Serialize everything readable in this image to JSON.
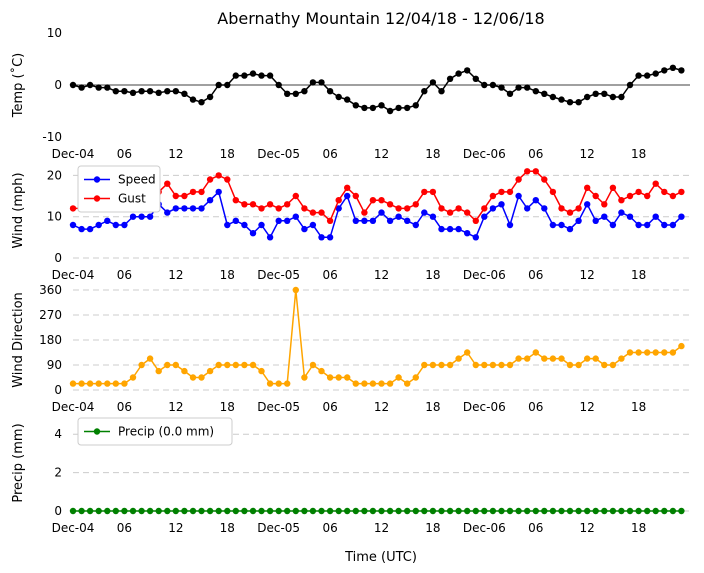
{
  "title": "Abernathy Mountain 12/04/18 - 12/06/18",
  "xlabel": "Time (UTC)",
  "x_ticks": [
    "Dec-04",
    "06",
    "12",
    "18",
    "Dec-05",
    "06",
    "12",
    "18",
    "Dec-06",
    "06",
    "12",
    "18"
  ],
  "x_tick_hours": [
    0,
    6,
    12,
    18,
    24,
    30,
    36,
    42,
    48,
    54,
    60,
    66
  ],
  "x_range_hours": [
    0,
    72
  ],
  "sample_interval_hours": 1,
  "colors": {
    "temp": "#000000",
    "speed": "#0000ff",
    "gust": "#ff0000",
    "direction": "#ffa500",
    "precip": "#008000",
    "grid": "#cccccc"
  },
  "chart_data": [
    {
      "type": "line",
      "id": "temp",
      "ylabel": "Temp (˚C)",
      "ylim": [
        -10,
        10
      ],
      "yticks": [
        -10,
        0,
        10
      ],
      "zero_line": true,
      "grid": false,
      "series": [
        {
          "name": "Temp",
          "color": "#000000",
          "values": [
            0,
            -0.5,
            0,
            -0.5,
            -0.5,
            -1.2,
            -1.2,
            -1.5,
            -1.2,
            -1.2,
            -1.5,
            -1.2,
            -1.2,
            -1.7,
            -2.8,
            -3.3,
            -2.3,
            0,
            0,
            1.8,
            1.8,
            2.2,
            1.8,
            1.8,
            0,
            -1.7,
            -1.7,
            -1.2,
            0.5,
            0.5,
            -1.2,
            -2.3,
            -2.8,
            -3.9,
            -4.4,
            -4.4,
            -3.9,
            -5.0,
            -4.4,
            -4.4,
            -3.9,
            -1.2,
            0.5,
            -1.2,
            1.2,
            2.2,
            2.8,
            1.2,
            0,
            0,
            -0.5,
            -1.7,
            -0.5,
            -0.5,
            -1.2,
            -1.7,
            -2.3,
            -2.8,
            -3.3,
            -3.3,
            -2.3,
            -1.7,
            -1.7,
            -2.3,
            -2.3,
            0,
            1.8,
            1.8,
            2.2,
            2.8,
            3.3,
            2.8
          ]
        }
      ]
    },
    {
      "type": "line",
      "id": "wind",
      "ylabel": "Wind (mph)",
      "ylim": [
        0,
        23
      ],
      "yticks": [
        0,
        10,
        20
      ],
      "grid": true,
      "legend": "top-left",
      "series": [
        {
          "name": "Speed",
          "color": "#0000ff",
          "values": [
            8,
            7,
            7,
            8,
            9,
            8,
            8,
            10,
            10,
            10,
            13,
            11,
            12,
            12,
            12,
            12,
            14,
            16,
            8,
            9,
            8,
            6,
            8,
            5,
            9,
            9,
            10,
            7,
            8,
            5,
            5,
            12,
            15,
            9,
            9,
            9,
            11,
            9,
            10,
            9,
            8,
            11,
            10,
            7,
            7,
            7,
            6,
            5,
            10,
            12,
            13,
            8,
            15,
            12,
            14,
            12,
            8,
            8,
            7,
            9,
            13,
            9,
            10,
            8,
            11,
            10,
            8,
            8,
            10,
            8,
            8,
            10
          ]
        },
        {
          "name": "Gust",
          "color": "#ff0000",
          "values": [
            12,
            12,
            12,
            12,
            13,
            14,
            13,
            14,
            18,
            14,
            16,
            18,
            15,
            15,
            16,
            16,
            19,
            20,
            19,
            14,
            13,
            13,
            12,
            13,
            12,
            13,
            15,
            12,
            11,
            11,
            9,
            14,
            17,
            15,
            11,
            14,
            14,
            13,
            12,
            12,
            13,
            16,
            16,
            12,
            11,
            12,
            11,
            9,
            12,
            15,
            16,
            16,
            19,
            21,
            21,
            19,
            16,
            12,
            11,
            12,
            17,
            15,
            13,
            17,
            14,
            15,
            16,
            15,
            18,
            16,
            15,
            16
          ]
        }
      ]
    },
    {
      "type": "line",
      "id": "direction",
      "ylabel": "Wind Direction",
      "ylim": [
        0,
        360
      ],
      "yticks": [
        0,
        90,
        180,
        270,
        360
      ],
      "grid": true,
      "series": [
        {
          "name": "Wind Direction",
          "color": "#ffa500",
          "values": [
            23,
            23,
            23,
            23,
            23,
            23,
            23,
            45,
            90,
            113,
            68,
            90,
            90,
            68,
            45,
            45,
            68,
            90,
            90,
            90,
            90,
            90,
            68,
            23,
            23,
            23,
            360,
            45,
            90,
            68,
            45,
            45,
            45,
            23,
            23,
            23,
            23,
            23,
            45,
            23,
            45,
            90,
            90,
            90,
            90,
            113,
            135,
            90,
            90,
            90,
            90,
            90,
            113,
            113,
            135,
            113,
            113,
            113,
            90,
            90,
            113,
            113,
            90,
            90,
            113,
            135,
            135,
            135,
            135,
            135,
            135,
            158
          ]
        }
      ]
    },
    {
      "type": "line",
      "id": "precip",
      "ylabel": "Precip (mm)",
      "ylim": [
        0,
        5
      ],
      "yticks": [
        0,
        2,
        4
      ],
      "grid": true,
      "legend": "top-left",
      "series": [
        {
          "name": "Precip (0.0 mm)",
          "color": "#008000",
          "values": [
            0,
            0,
            0,
            0,
            0,
            0,
            0,
            0,
            0,
            0,
            0,
            0,
            0,
            0,
            0,
            0,
            0,
            0,
            0,
            0,
            0,
            0,
            0,
            0,
            0,
            0,
            0,
            0,
            0,
            0,
            0,
            0,
            0,
            0,
            0,
            0,
            0,
            0,
            0,
            0,
            0,
            0,
            0,
            0,
            0,
            0,
            0,
            0,
            0,
            0,
            0,
            0,
            0,
            0,
            0,
            0,
            0,
            0,
            0,
            0,
            0,
            0,
            0,
            0,
            0,
            0,
            0,
            0,
            0,
            0,
            0,
            0
          ]
        }
      ]
    }
  ]
}
